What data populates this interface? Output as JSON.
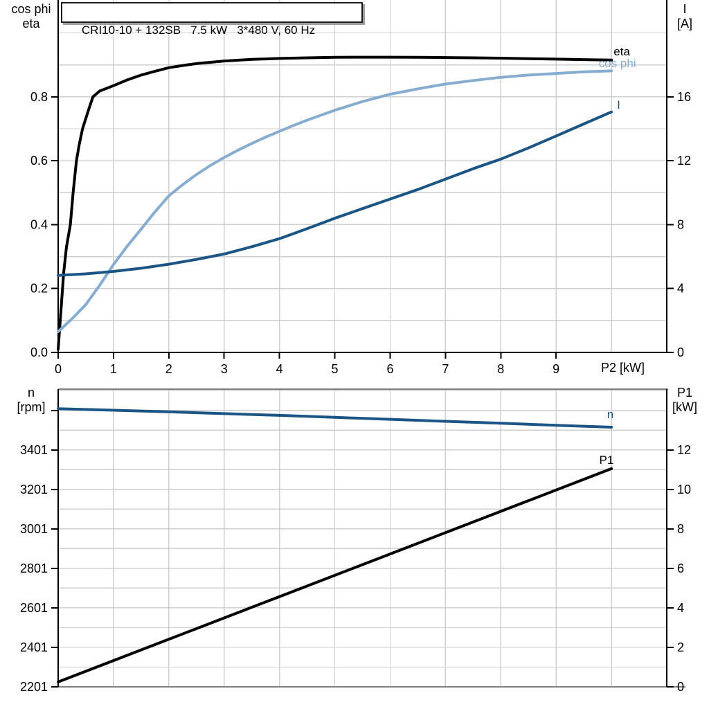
{
  "title_box": "CRI10-10 + 132SB   7.5 kW   3*480 V, 60 Hz",
  "colors": {
    "eta_curve": "#000000",
    "cos_phi_curve": "#86accf",
    "current_curve": "#1a5585",
    "speed_curve": "#1a5585",
    "p1_curve": "#000000",
    "grid": "#cfcfcf",
    "axis": "#000000",
    "bottom_frame": "#808080"
  },
  "axis_corner_labels": {
    "top_left": [
      "cos phi",
      "eta"
    ],
    "top_right": [
      "I",
      "[A]"
    ],
    "bottom_left": [
      "n",
      "[rpm]"
    ],
    "bottom_right": [
      "P1",
      "[kW]"
    ],
    "x_axis_title": "P2 [kW]"
  },
  "chart_data": [
    {
      "type": "line",
      "panel": "top",
      "title": "CRI10-10 + 132SB   7.5 kW   3*480 V, 60 Hz",
      "xlabel": "P2 [kW]",
      "grid_axis": "left",
      "x_axis": {
        "min": 0,
        "max": 11,
        "grid_step": 1,
        "ticks": [
          {
            "v": 0,
            "label": "0"
          },
          {
            "v": 1,
            "label": "1"
          },
          {
            "v": 2,
            "label": "2"
          },
          {
            "v": 3,
            "label": "3"
          },
          {
            "v": 4,
            "label": "4"
          },
          {
            "v": 5,
            "label": "5"
          },
          {
            "v": 6,
            "label": "6"
          },
          {
            "v": 7,
            "label": "7"
          },
          {
            "v": 8,
            "label": "8"
          },
          {
            "v": 9,
            "label": "9"
          }
        ]
      },
      "left_axis": {
        "label": "cos phi / eta",
        "min": 0,
        "max": 1.103,
        "grid_step": 0.1,
        "grid_max": 1.0,
        "ticks": [
          {
            "v": 0,
            "label": "0.0"
          },
          {
            "v": 0.2,
            "label": "0.2"
          },
          {
            "v": 0.4,
            "label": "0.4"
          },
          {
            "v": 0.6,
            "label": "0.6"
          },
          {
            "v": 0.8,
            "label": "0.8"
          }
        ]
      },
      "right_axis": {
        "label": "I [A]",
        "min": 0,
        "max": 22.06,
        "ticks": [
          {
            "v": 0,
            "label": "0"
          },
          {
            "v": 4,
            "label": "4"
          },
          {
            "v": 8,
            "label": "8"
          },
          {
            "v": 12,
            "label": "12"
          },
          {
            "v": 16,
            "label": "16"
          }
        ]
      },
      "series": [
        {
          "name": "eta",
          "axis": "left",
          "color": "#000000",
          "width": 4,
          "points": [
            [
              0,
              0.01
            ],
            [
              0.05,
              0.13
            ],
            [
              0.1,
              0.25
            ],
            [
              0.15,
              0.33
            ],
            [
              0.22,
              0.4
            ],
            [
              0.27,
              0.5
            ],
            [
              0.33,
              0.6
            ],
            [
              0.38,
              0.65
            ],
            [
              0.44,
              0.7
            ],
            [
              0.55,
              0.76
            ],
            [
              0.63,
              0.8
            ],
            [
              0.75,
              0.818
            ],
            [
              0.9,
              0.828
            ],
            [
              1,
              0.835
            ],
            [
              1.25,
              0.853
            ],
            [
              1.5,
              0.868
            ],
            [
              1.75,
              0.88
            ],
            [
              2,
              0.891
            ],
            [
              2.25,
              0.898
            ],
            [
              2.5,
              0.904
            ],
            [
              2.75,
              0.908
            ],
            [
              3,
              0.912
            ],
            [
              3.5,
              0.917
            ],
            [
              4,
              0.92
            ],
            [
              4.5,
              0.922
            ],
            [
              5,
              0.9235
            ],
            [
              5.5,
              0.924
            ],
            [
              6,
              0.924
            ],
            [
              6.5,
              0.9235
            ],
            [
              7,
              0.923
            ],
            [
              7.5,
              0.922
            ],
            [
              8,
              0.921
            ],
            [
              8.5,
              0.9195
            ],
            [
              9,
              0.918
            ],
            [
              9.5,
              0.9165
            ],
            [
              10,
              0.915
            ]
          ]
        },
        {
          "name": "cos phi",
          "axis": "left",
          "color": "#86accf",
          "width": 4,
          "points": [
            [
              0,
              0.065
            ],
            [
              0.25,
              0.105
            ],
            [
              0.5,
              0.15
            ],
            [
              0.75,
              0.21
            ],
            [
              1,
              0.275
            ],
            [
              1.25,
              0.333
            ],
            [
              1.5,
              0.386
            ],
            [
              1.75,
              0.44
            ],
            [
              2,
              0.49
            ],
            [
              2.25,
              0.525
            ],
            [
              2.5,
              0.557
            ],
            [
              2.75,
              0.585
            ],
            [
              3,
              0.61
            ],
            [
              3.25,
              0.633
            ],
            [
              3.5,
              0.654
            ],
            [
              3.75,
              0.674
            ],
            [
              4,
              0.692
            ],
            [
              4.25,
              0.71
            ],
            [
              4.5,
              0.727
            ],
            [
              5,
              0.758
            ],
            [
              5.5,
              0.785
            ],
            [
              6,
              0.808
            ],
            [
              6.5,
              0.825
            ],
            [
              7,
              0.84
            ],
            [
              7.5,
              0.851
            ],
            [
              8,
              0.861
            ],
            [
              8.5,
              0.868
            ],
            [
              9,
              0.873
            ],
            [
              9.5,
              0.878
            ],
            [
              10,
              0.881
            ]
          ]
        },
        {
          "name": "I",
          "axis": "right",
          "color": "#1a5585",
          "width": 4,
          "points": [
            [
              0,
              4.82
            ],
            [
              0.5,
              4.92
            ],
            [
              1,
              5.07
            ],
            [
              1.5,
              5.27
            ],
            [
              2,
              5.52
            ],
            [
              2.5,
              5.82
            ],
            [
              3,
              6.16
            ],
            [
              3.5,
              6.62
            ],
            [
              4,
              7.12
            ],
            [
              4.5,
              7.75
            ],
            [
              5,
              8.4
            ],
            [
              5.5,
              9.0
            ],
            [
              6,
              9.6
            ],
            [
              6.5,
              10.2
            ],
            [
              7,
              10.85
            ],
            [
              7.5,
              11.5
            ],
            [
              8,
              12.1
            ],
            [
              8.5,
              12.8
            ],
            [
              9,
              13.55
            ],
            [
              9.5,
              14.3
            ],
            [
              10,
              15.05
            ]
          ]
        }
      ],
      "curve_labels": [
        {
          "text": "eta",
          "x": 10.04,
          "v": 0.93,
          "axis": "left",
          "color": "#000000"
        },
        {
          "text": "cos phi",
          "x": 9.77,
          "v": 0.893,
          "axis": "left",
          "color": "#86accf"
        },
        {
          "text": "I",
          "x": 10.1,
          "v": 0.763,
          "axis": "left",
          "color": "#1a5585"
        }
      ]
    },
    {
      "type": "line",
      "panel": "bottom",
      "xlabel": "",
      "grid_axis": "right",
      "x_axis": {
        "min": 0,
        "max": 11,
        "grid_step": 1,
        "ticks": []
      },
      "left_axis": {
        "label": "n [rpm]",
        "min": 2201,
        "max": 3709,
        "grid_step": 100,
        "ticks": [
          {
            "v": 2201,
            "label": "2201"
          },
          {
            "v": 2401,
            "label": "2401"
          },
          {
            "v": 2601,
            "label": "2601"
          },
          {
            "v": 2801,
            "label": "2801"
          },
          {
            "v": 3001,
            "label": "3001"
          },
          {
            "v": 3201,
            "label": "3201"
          },
          {
            "v": 3401,
            "label": "3401"
          },
          {
            "v": 3601,
            "label": ""
          }
        ]
      },
      "right_axis": {
        "label": "P1 [kW]",
        "min": 0,
        "max": 15.08,
        "grid_step": 1,
        "grid_max": 15,
        "ticks": [
          {
            "v": 0,
            "label": "0"
          },
          {
            "v": 2,
            "label": "2"
          },
          {
            "v": 4,
            "label": "4"
          },
          {
            "v": 6,
            "label": "6"
          },
          {
            "v": 8,
            "label": "8"
          },
          {
            "v": 10,
            "label": "10"
          },
          {
            "v": 12,
            "label": "12"
          }
        ]
      },
      "series": [
        {
          "name": "n",
          "axis": "left",
          "color": "#1a5585",
          "width": 4,
          "points": [
            [
              0,
              3610
            ],
            [
              1,
              3602
            ],
            [
              2,
              3594
            ],
            [
              3,
              3585
            ],
            [
              4,
              3576
            ],
            [
              5,
              3566
            ],
            [
              6,
              3556
            ],
            [
              7,
              3546
            ],
            [
              8,
              3536
            ],
            [
              9,
              3526
            ],
            [
              10,
              3516
            ]
          ]
        },
        {
          "name": "P1",
          "axis": "right",
          "color": "#000000",
          "width": 4,
          "points": [
            [
              0,
              0.25
            ],
            [
              2,
              2.41
            ],
            [
              4,
              4.57
            ],
            [
              6,
              6.73
            ],
            [
              8,
              8.89
            ],
            [
              10,
              11.05
            ]
          ]
        }
      ],
      "curve_labels": [
        {
          "text": "n",
          "x": 9.92,
          "v": 3562,
          "axis": "left",
          "color": "#1a5585"
        },
        {
          "text": "P1",
          "x": 9.78,
          "v": 11.3,
          "axis": "right",
          "color": "#000000"
        }
      ]
    }
  ]
}
